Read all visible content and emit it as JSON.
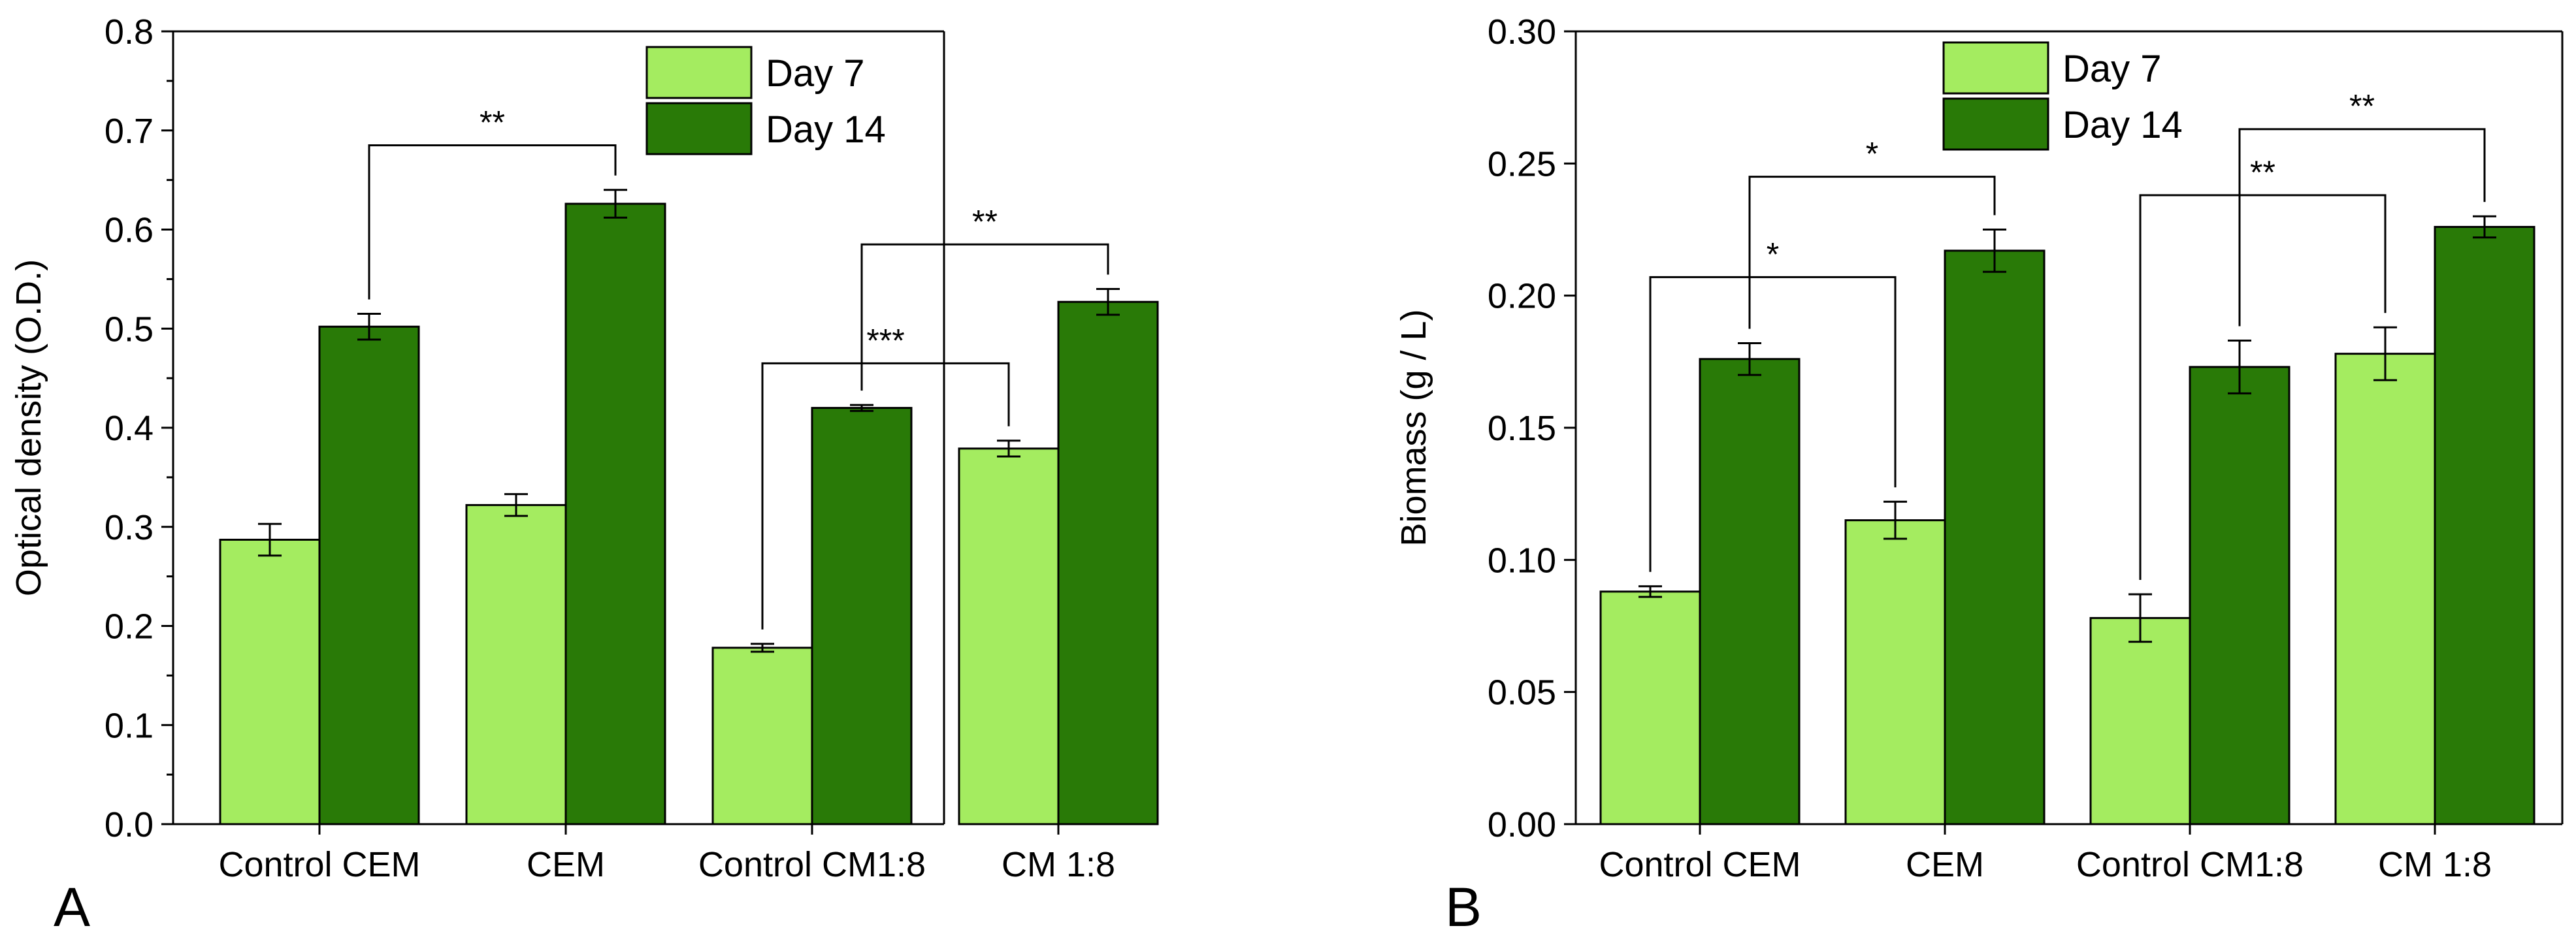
{
  "colors": {
    "day7": "#a4ec60",
    "day14": "#297a07",
    "stroke": "#000000"
  },
  "chart_data": [
    {
      "type": "bar",
      "panel_label": "A",
      "categories": [
        "Control CEM",
        "CEM",
        "Control CM1:8",
        "CM 1:8"
      ],
      "series": [
        {
          "name": "Day 7",
          "values": [
            0.287,
            0.322,
            0.178,
            0.379
          ],
          "errors": [
            0.016,
            0.011,
            0.004,
            0.008
          ]
        },
        {
          "name": "Day 14",
          "values": [
            0.502,
            0.626,
            0.42,
            0.527
          ],
          "errors": [
            0.013,
            0.014,
            0.003,
            0.013
          ]
        }
      ],
      "xlabel": "",
      "ylabel": "Optical density (O.D.)",
      "ylim": [
        0,
        0.8
      ],
      "yticks": [
        0.0,
        0.1,
        0.2,
        0.3,
        0.4,
        0.5,
        0.6,
        0.7,
        0.8
      ],
      "yticklabels": [
        "0.0",
        "0.1",
        "0.2",
        "0.3",
        "0.4",
        "0.5",
        "0.6",
        "0.7",
        "0.8"
      ],
      "legend_position": "top-right",
      "significance": [
        {
          "label": "**",
          "from": {
            "category": 0,
            "series": 1
          },
          "to": {
            "category": 1,
            "series": 1
          },
          "bracket_y": 0.685
        },
        {
          "label": "***",
          "from": {
            "category": 2,
            "series": 0
          },
          "to": {
            "category": 3,
            "series": 0
          },
          "bracket_y": 0.465
        },
        {
          "label": "**",
          "from": {
            "category": 2,
            "series": 1
          },
          "to": {
            "category": 3,
            "series": 1
          },
          "bracket_y": 0.585
        }
      ]
    },
    {
      "type": "bar",
      "panel_label": "B",
      "categories": [
        "Control CEM",
        "CEM",
        "Control CM1:8",
        "CM 1:8"
      ],
      "series": [
        {
          "name": "Day 7",
          "values": [
            0.088,
            0.115,
            0.078,
            0.178
          ],
          "errors": [
            0.002,
            0.007,
            0.009,
            0.01
          ]
        },
        {
          "name": "Day 14",
          "values": [
            0.176,
            0.217,
            0.173,
            0.226
          ],
          "errors": [
            0.006,
            0.008,
            0.01,
            0.004
          ]
        }
      ],
      "xlabel": "",
      "ylabel": "Biomass (g / L)",
      "ylim": [
        0,
        0.3
      ],
      "yticks": [
        0.0,
        0.05,
        0.1,
        0.15,
        0.2,
        0.25,
        0.3
      ],
      "yticklabels": [
        "0.00",
        "0.05",
        "0.10",
        "0.15",
        "0.20",
        "0.25",
        "0.30"
      ],
      "legend_position": "top-center",
      "significance": [
        {
          "label": "*",
          "from": {
            "category": 0,
            "series": 0
          },
          "to": {
            "category": 1,
            "series": 0
          },
          "bracket_y": 0.207
        },
        {
          "label": "*",
          "from": {
            "category": 0,
            "series": 1
          },
          "to": {
            "category": 1,
            "series": 1
          },
          "bracket_y": 0.245
        },
        {
          "label": "**",
          "from": {
            "category": 2,
            "series": 0
          },
          "to": {
            "category": 3,
            "series": 0
          },
          "bracket_y": 0.238
        },
        {
          "label": "**",
          "from": {
            "category": 2,
            "series": 1
          },
          "to": {
            "category": 3,
            "series": 1
          },
          "bracket_y": 0.263
        }
      ]
    }
  ]
}
